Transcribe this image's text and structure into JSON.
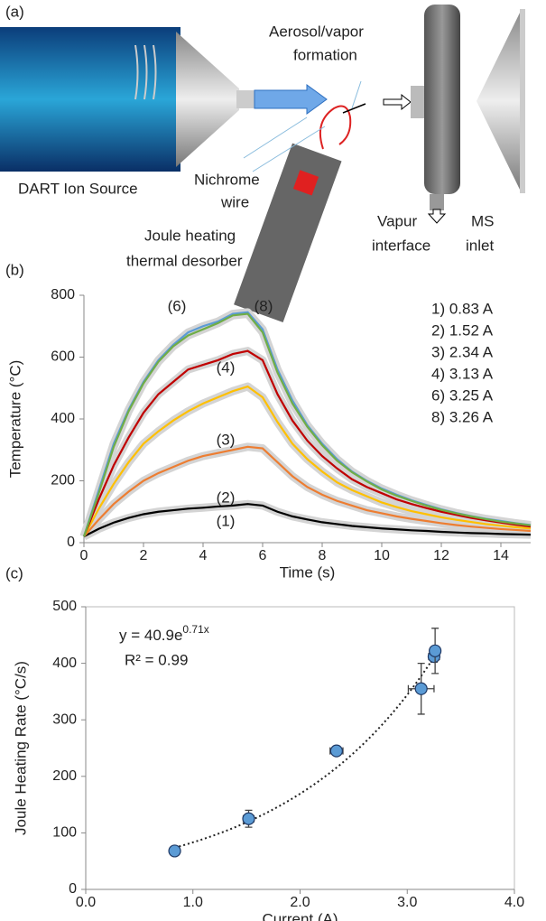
{
  "panel_a": {
    "label": "(a)",
    "texts": {
      "dart": "DART Ion Source",
      "wire": [
        "Nichrome",
        "wire"
      ],
      "aerosol": [
        "Aerosol/vapor",
        "formation"
      ],
      "desorber": [
        "Joule heating",
        "thermal desorber"
      ],
      "vapur": [
        "Vapur",
        "interface"
      ],
      "ms": [
        "MS",
        "inlet"
      ]
    }
  },
  "chart_data": [
    {
      "type": "line",
      "panel": "(b)",
      "x_label": "Time (s)",
      "y_label": "Temperature (°C)",
      "xlim": [
        0,
        15
      ],
      "xticks": [
        0,
        2,
        4,
        6,
        8,
        10,
        12,
        14
      ],
      "ylim": [
        0,
        800
      ],
      "yticks": [
        0,
        200,
        400,
        600,
        800
      ],
      "x": [
        0,
        0.5,
        1,
        1.5,
        2,
        2.5,
        3,
        3.5,
        4,
        4.5,
        5,
        5.5,
        6,
        6.5,
        7,
        7.5,
        8,
        8.5,
        9,
        9.5,
        10,
        10.5,
        11,
        11.5,
        12,
        12.5,
        13,
        13.5,
        14,
        14.5,
        15
      ],
      "series": [
        {
          "name": "1) 0.83 A",
          "tag": "(1)",
          "color": "#000000",
          "values": [
            20,
            45,
            65,
            80,
            92,
            100,
            105,
            110,
            113,
            117,
            120,
            125,
            120,
            100,
            85,
            75,
            66,
            60,
            54,
            50,
            46,
            43,
            40,
            38,
            35,
            33,
            31,
            30,
            28,
            27,
            26
          ]
        },
        {
          "name": "2) 1.52 A",
          "tag": "(2)",
          "color": "#ed7d31",
          "values": [
            20,
            75,
            125,
            165,
            200,
            225,
            245,
            265,
            280,
            290,
            300,
            310,
            305,
            260,
            215,
            180,
            155,
            135,
            120,
            105,
            95,
            85,
            77,
            70,
            63,
            57,
            52,
            48,
            44,
            41,
            38
          ]
        },
        {
          "name": "3) 2.34 A",
          "tag": "(3)",
          "color": "#ffc000",
          "values": [
            20,
            110,
            190,
            260,
            320,
            360,
            395,
            425,
            450,
            470,
            490,
            505,
            470,
            390,
            320,
            270,
            230,
            195,
            170,
            150,
            130,
            115,
            102,
            92,
            82,
            74,
            67,
            60,
            55,
            50,
            46
          ]
        },
        {
          "name": "4) 3.13 A",
          "tag": "(4)",
          "color": "#c00000",
          "values": [
            20,
            140,
            250,
            340,
            420,
            480,
            520,
            560,
            575,
            590,
            610,
            620,
            590,
            480,
            395,
            330,
            280,
            240,
            205,
            180,
            160,
            140,
            125,
            112,
            100,
            90,
            80,
            72,
            65,
            58,
            52
          ]
        },
        {
          "name": "6) 3.25 A",
          "tag": "(6)",
          "color": "#5b9bd5",
          "values": [
            20,
            170,
            320,
            430,
            520,
            590,
            640,
            680,
            700,
            715,
            740,
            745,
            690,
            560,
            460,
            380,
            320,
            270,
            230,
            200,
            175,
            155,
            137,
            122,
            108,
            96,
            86,
            77,
            70,
            63,
            57
          ]
        },
        {
          "name": "8) 3.26 A",
          "tag": "(8)",
          "color": "#70ad47",
          "values": [
            20,
            160,
            310,
            425,
            515,
            585,
            635,
            670,
            690,
            710,
            735,
            740,
            680,
            550,
            450,
            375,
            315,
            265,
            228,
            198,
            172,
            152,
            135,
            120,
            106,
            95,
            85,
            76,
            68,
            62,
            56
          ]
        }
      ]
    },
    {
      "type": "scatter",
      "panel": "(c)",
      "x_label": "Current (A)",
      "y_label": "Joule Heating Rate (°C/s)",
      "xlim": [
        0,
        4
      ],
      "xticks": [
        {
          "value": 0,
          "label": "0.0"
        },
        {
          "value": 1,
          "label": "1.0"
        },
        {
          "value": 2,
          "label": "2.0"
        },
        {
          "value": 3,
          "label": "3.0"
        },
        {
          "value": 4,
          "label": "4.0"
        }
      ],
      "ylim": [
        0,
        500
      ],
      "yticks": [
        0,
        100,
        200,
        300,
        400,
        500
      ],
      "color": "#5b9bd5",
      "x": [
        0.83,
        1.52,
        2.34,
        3.13,
        3.25,
        3.26
      ],
      "xerr": [
        0.03,
        0.05,
        0.06,
        0.12,
        0.05,
        0.03
      ],
      "values": [
        68,
        125,
        245,
        355,
        412,
        422
      ],
      "yerr": [
        5,
        15,
        8,
        45,
        10,
        40
      ],
      "trendline": {
        "coefficient": 40.9,
        "exponent": 0.71,
        "equation": "y = 40.9e",
        "equation_exponent": "0.71x",
        "r2": "R² = 0.99"
      }
    }
  ]
}
